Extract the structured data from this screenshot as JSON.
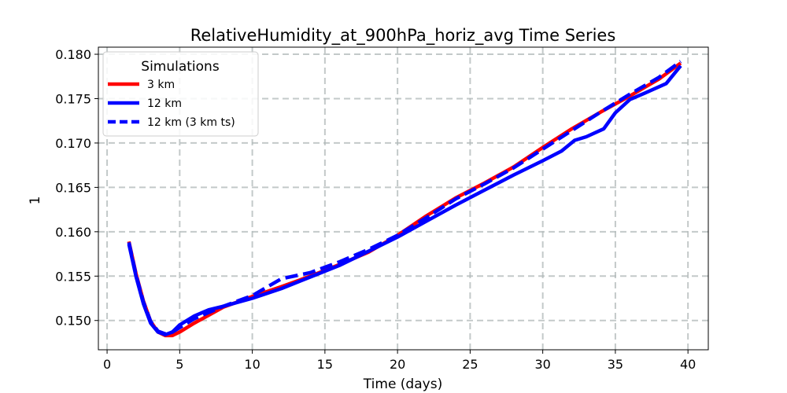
{
  "chart_data": {
    "type": "line",
    "title": "RelativeHumidity_at_900hPa_horiz_avg Time Series",
    "xlabel": "Time (days)",
    "ylabel": "1",
    "xlim": [
      -0.6,
      41.4
    ],
    "ylim": [
      0.1467,
      0.1808
    ],
    "xticks": [
      0,
      5,
      10,
      15,
      20,
      25,
      30,
      35,
      40
    ],
    "yticks": [
      0.15,
      0.155,
      0.16,
      0.165,
      0.17,
      0.175,
      0.18
    ],
    "ytick_labels": [
      "0.150",
      "0.155",
      "0.160",
      "0.165",
      "0.170",
      "0.175",
      "0.180"
    ],
    "grid": true,
    "legend": {
      "title": "Simulations",
      "placement": "top-left"
    },
    "series": [
      {
        "name": "3 km",
        "color": "#ff0000",
        "style": "solid",
        "x": [
          1.5,
          2.0,
          2.5,
          3.0,
          3.5,
          4.0,
          4.5,
          5.0,
          6.0,
          7.0,
          8.0,
          10.0,
          12.0,
          14.0,
          16.0,
          18.0,
          20.0,
          22.0,
          24.0,
          26.0,
          28.0,
          30.0,
          32.0,
          34.0,
          36.0,
          38.0,
          39.5
        ],
        "y": [
          0.1589,
          0.1552,
          0.1522,
          0.1499,
          0.1487,
          0.1483,
          0.1483,
          0.1487,
          0.1497,
          0.1506,
          0.1515,
          0.1527,
          0.1538,
          0.155,
          0.1563,
          0.1577,
          0.1596,
          0.1618,
          0.1638,
          0.1655,
          0.1673,
          0.1695,
          0.1716,
          0.1735,
          0.1753,
          0.1772,
          0.179
        ]
      },
      {
        "name": "12 km",
        "color": "#0000ff",
        "style": "solid",
        "x": [
          1.5,
          2.0,
          2.5,
          3.0,
          3.5,
          4.0,
          4.5,
          5.0,
          6.0,
          7.0,
          8.0,
          10.0,
          12.0,
          14.0,
          16.0,
          18.0,
          20.0,
          22.0,
          24.0,
          26.0,
          28.0,
          30.0,
          31.3,
          32.2,
          33.0,
          34.2,
          35.0,
          36.0,
          37.0,
          38.5,
          39.5
        ],
        "y": [
          0.1586,
          0.1549,
          0.1519,
          0.1497,
          0.1487,
          0.1484,
          0.1487,
          0.1495,
          0.1505,
          0.1512,
          0.1516,
          0.1525,
          0.1536,
          0.1549,
          0.1562,
          0.1578,
          0.1594,
          0.1612,
          0.163,
          0.1647,
          0.1664,
          0.168,
          0.1691,
          0.1703,
          0.1707,
          0.1716,
          0.1734,
          0.1749,
          0.1756,
          0.1767,
          0.1787
        ]
      },
      {
        "name": "12 km (3 km ts)",
        "color": "#0000ff",
        "style": "dashed",
        "x": [
          1.5,
          2.0,
          2.5,
          3.0,
          3.5,
          4.0,
          4.5,
          5.0,
          6.0,
          7.0,
          8.0,
          10.0,
          12.0,
          14.0,
          16.0,
          18.0,
          20.0,
          22.0,
          24.0,
          26.0,
          28.0,
          30.0,
          32.0,
          34.0,
          36.0,
          38.0,
          39.5
        ],
        "y": [
          0.1588,
          0.1551,
          0.1521,
          0.1499,
          0.1488,
          0.1485,
          0.1487,
          0.1492,
          0.1502,
          0.1509,
          0.1516,
          0.1528,
          0.1547,
          0.1554,
          0.1566,
          0.158,
          0.1596,
          0.1616,
          0.1637,
          0.1654,
          0.1672,
          0.1693,
          0.1714,
          0.1735,
          0.1755,
          0.1774,
          0.1792
        ]
      }
    ]
  }
}
